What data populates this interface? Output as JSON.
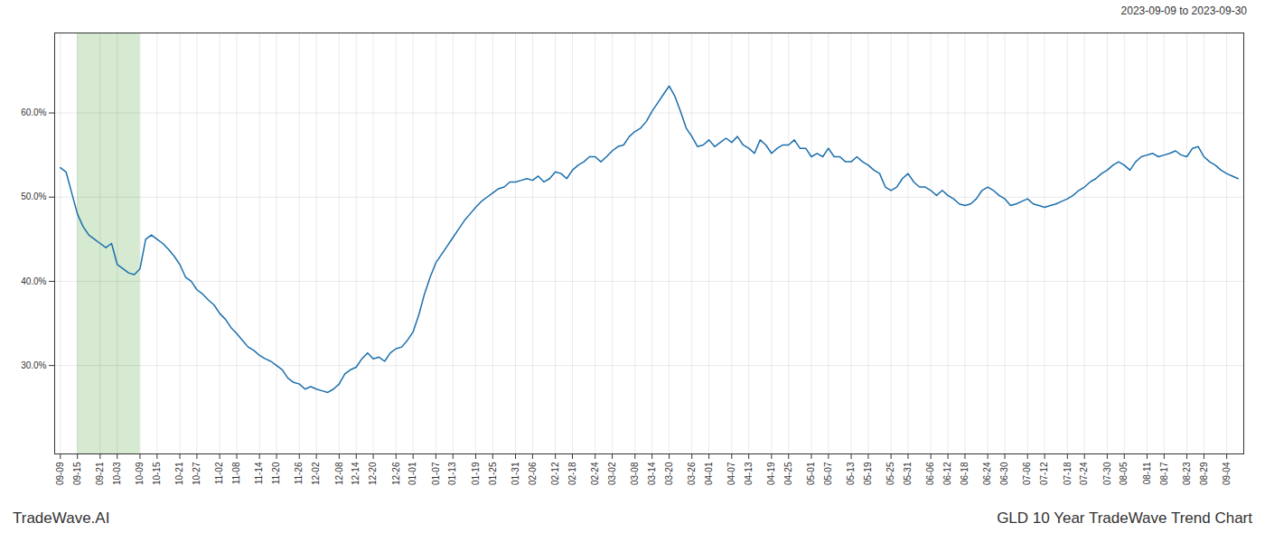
{
  "chart_data": {
    "type": "line",
    "title": "GLD 10 Year TradeWave Trend Chart",
    "subtitle": "2023-09-09 to 2023-09-30",
    "annotations": [
      "TradeWave.AI"
    ],
    "color": "#1a6fad",
    "grid": true,
    "highlight": {
      "start": "09-15",
      "end": "10-09",
      "color": "#d5ead0"
    },
    "ylim": [
      0.195,
      0.695
    ],
    "yticks": [
      {
        "value": 0.3,
        "label": "30.0%"
      },
      {
        "value": 0.4,
        "label": "40.0%"
      },
      {
        "value": 0.5,
        "label": "50.0%"
      },
      {
        "value": 0.6,
        "label": "60.0%"
      }
    ],
    "categories": [
      "09-09",
      null,
      null,
      "09-15",
      null,
      null,
      null,
      "09-21",
      null,
      null,
      "10-03",
      null,
      null,
      null,
      "10-09",
      null,
      null,
      "10-15",
      null,
      null,
      null,
      "10-21",
      null,
      null,
      "10-27",
      null,
      null,
      null,
      "11-02",
      null,
      null,
      "11-08",
      null,
      null,
      null,
      "11-14",
      null,
      null,
      "11-20",
      null,
      null,
      null,
      "11-26",
      null,
      null,
      "12-02",
      null,
      null,
      null,
      "12-08",
      null,
      null,
      "12-14",
      null,
      null,
      "12-20",
      null,
      null,
      null,
      "12-26",
      null,
      null,
      "01-01",
      null,
      null,
      null,
      "01-07",
      null,
      null,
      "01-13",
      null,
      null,
      null,
      "01-19",
      null,
      null,
      "01-25",
      null,
      null,
      null,
      "01-31",
      null,
      null,
      "02-06",
      null,
      null,
      null,
      "02-12",
      null,
      null,
      "02-18",
      null,
      null,
      null,
      "02-24",
      null,
      null,
      "03-02",
      null,
      null,
      null,
      "03-08",
      null,
      null,
      "03-14",
      null,
      null,
      "03-20",
      null,
      null,
      null,
      "03-26",
      null,
      null,
      "04-01",
      null,
      null,
      null,
      "04-07",
      null,
      null,
      "04-13",
      null,
      null,
      null,
      "04-19",
      null,
      null,
      "04-25",
      null,
      null,
      null,
      "05-01",
      null,
      null,
      "05-07",
      null,
      null,
      null,
      "05-13",
      null,
      null,
      "05-19",
      null,
      null,
      null,
      "05-25",
      null,
      null,
      "05-31",
      null,
      null,
      null,
      "06-06",
      null,
      null,
      "06-12",
      null,
      null,
      "06-18",
      null,
      null,
      null,
      "06-24",
      null,
      null,
      "06-30",
      null,
      null,
      null,
      "07-06",
      null,
      null,
      "07-12",
      null,
      null,
      null,
      "07-18",
      null,
      null,
      "07-24",
      null,
      null,
      null,
      "07-30",
      null,
      null,
      "08-05",
      null,
      null,
      null,
      "08-11",
      null,
      null,
      "08-17",
      null,
      null,
      null,
      "08-23",
      null,
      null,
      "08-29",
      null,
      null,
      null,
      "09-04",
      null,
      null
    ],
    "values": [
      0.535,
      0.53,
      0.505,
      0.48,
      0.465,
      0.455,
      0.45,
      0.445,
      0.44,
      0.445,
      0.42,
      0.415,
      0.41,
      0.408,
      0.415,
      0.45,
      0.455,
      0.45,
      0.445,
      0.438,
      0.43,
      0.42,
      0.405,
      0.4,
      0.39,
      0.385,
      0.378,
      0.372,
      0.362,
      0.355,
      0.345,
      0.338,
      0.33,
      0.322,
      0.318,
      0.312,
      0.308,
      0.305,
      0.3,
      0.295,
      0.285,
      0.28,
      0.278,
      0.272,
      0.275,
      0.272,
      0.27,
      0.268,
      0.272,
      0.278,
      0.29,
      0.295,
      0.298,
      0.308,
      0.315,
      0.308,
      0.31,
      0.305,
      0.315,
      0.32,
      0.322,
      0.33,
      0.34,
      0.36,
      0.385,
      0.405,
      0.422,
      0.432,
      0.442,
      0.452,
      0.462,
      0.472,
      0.48,
      0.488,
      0.495,
      0.5,
      0.505,
      0.51,
      0.512,
      0.518,
      0.518,
      0.52,
      0.522,
      0.52,
      0.525,
      0.518,
      0.522,
      0.53,
      0.528,
      0.522,
      0.532,
      0.538,
      0.542,
      0.548,
      0.548,
      0.542,
      0.548,
      0.555,
      0.56,
      0.562,
      0.572,
      0.578,
      0.582,
      0.59,
      0.602,
      0.612,
      0.622,
      0.632,
      0.62,
      0.602,
      0.582,
      0.572,
      0.56,
      0.562,
      0.568,
      0.56,
      0.565,
      0.57,
      0.565,
      0.572,
      0.562,
      0.558,
      0.552,
      0.568,
      0.562,
      0.552,
      0.558,
      0.562,
      0.562,
      0.568,
      0.558,
      0.558,
      0.548,
      0.552,
      0.548,
      0.558,
      0.548,
      0.548,
      0.542,
      0.542,
      0.548,
      0.542,
      0.538,
      0.532,
      0.528,
      0.512,
      0.508,
      0.512,
      0.522,
      0.528,
      0.518,
      0.512,
      0.512,
      0.508,
      0.502,
      0.508,
      0.502,
      0.498,
      0.492,
      0.49,
      0.492,
      0.498,
      0.508,
      0.512,
      0.508,
      0.502,
      0.498,
      0.49,
      0.492,
      0.495,
      0.498,
      0.492,
      0.49,
      0.488,
      0.49,
      0.492,
      0.495,
      0.498,
      0.502,
      0.508,
      0.512,
      0.518,
      0.522,
      0.528,
      0.532,
      0.538,
      0.542,
      0.538,
      0.532,
      0.542,
      0.548,
      0.55,
      0.552,
      0.548,
      0.55,
      0.552,
      0.555,
      0.55,
      0.548,
      0.558,
      0.56,
      0.548,
      0.542,
      0.538,
      0.532,
      0.528,
      0.525,
      0.522
    ]
  }
}
